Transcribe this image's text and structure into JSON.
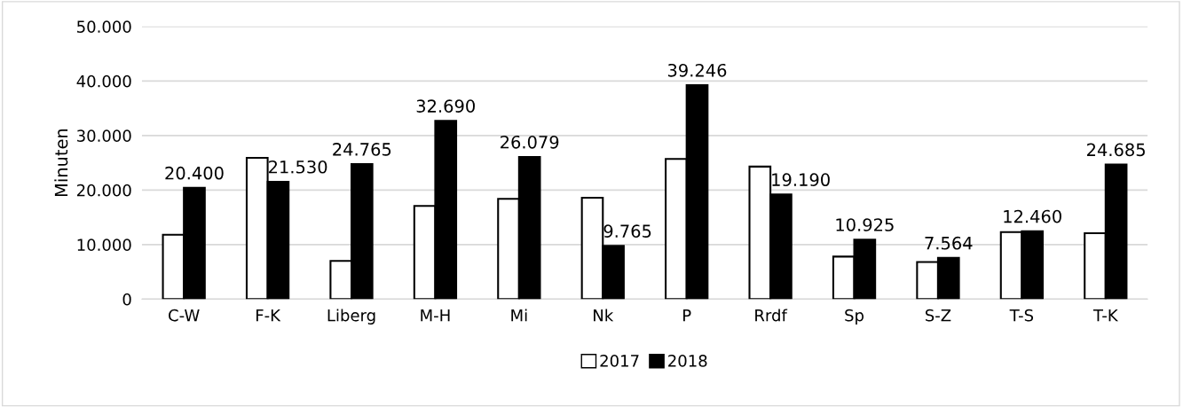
{
  "chart_data": {
    "type": "bar",
    "ylabel": "Minuten",
    "categories": [
      "C-W",
      "F-K",
      "Liberg",
      "M-H",
      "Mi",
      "Nk",
      "P",
      "Rrdf",
      "Sp",
      "S-Z",
      "T-S",
      "T-K"
    ],
    "series": [
      {
        "name": "2017",
        "color": "#ffffff",
        "values": [
          11800,
          25900,
          7000,
          17100,
          18400,
          18600,
          25700,
          24300,
          7800,
          6800,
          12300,
          12100
        ]
      },
      {
        "name": "2018",
        "color": "#000000",
        "values": [
          20400,
          21530,
          24765,
          32690,
          26079,
          9765,
          39246,
          19190,
          10925,
          7564,
          12460,
          24685
        ],
        "value_labels": [
          "20.400",
          "21.530",
          "24.765",
          "32.690",
          "26.079",
          "9.765",
          "39.246",
          "19.190",
          "10.925",
          "7.564",
          "12.460",
          "24.685"
        ]
      }
    ],
    "ylim": [
      0,
      50000
    ],
    "yticks": [
      {
        "value": 0,
        "label": "0"
      },
      {
        "value": 10000,
        "label": "10.000"
      },
      {
        "value": 20000,
        "label": "20.000"
      },
      {
        "value": 30000,
        "label": "30.000"
      },
      {
        "value": 40000,
        "label": "40.000"
      },
      {
        "value": 50000,
        "label": "50.000"
      }
    ],
    "grid": "y",
    "legend": "bottom"
  }
}
